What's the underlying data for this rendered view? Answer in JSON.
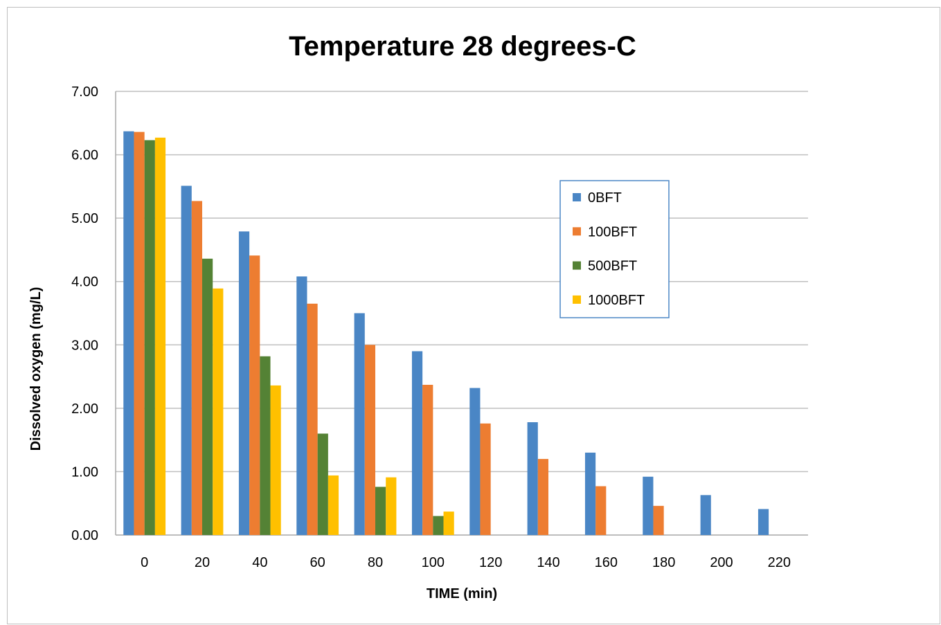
{
  "chart_data": {
    "type": "bar",
    "title": "Temperature 28 degrees-C",
    "xlabel": "TIME (min)",
    "ylabel": "Dissolved oxygen (mg/L)",
    "ylim": [
      0,
      7
    ],
    "yticks": [
      "0.00",
      "1.00",
      "2.00",
      "3.00",
      "4.00",
      "5.00",
      "6.00",
      "7.00"
    ],
    "categories": [
      "0",
      "20",
      "40",
      "60",
      "80",
      "100",
      "120",
      "140",
      "160",
      "180",
      "200",
      "220"
    ],
    "grid": true,
    "legend_position": "right",
    "series": [
      {
        "name": "0BFT",
        "color": "#4a86c5",
        "values": [
          6.37,
          5.51,
          4.79,
          4.08,
          3.5,
          2.9,
          2.32,
          1.78,
          1.3,
          0.92,
          0.63,
          0.41
        ]
      },
      {
        "name": "100BFT",
        "color": "#ed7d31",
        "values": [
          6.36,
          5.27,
          4.41,
          3.65,
          3.0,
          2.37,
          1.76,
          1.2,
          0.77,
          0.46,
          null,
          null
        ]
      },
      {
        "name": "500BFT",
        "color": "#548235",
        "values": [
          6.23,
          4.36,
          2.82,
          1.6,
          0.76,
          0.3,
          null,
          null,
          null,
          null,
          null,
          null
        ]
      },
      {
        "name": "1000BFT",
        "color": "#ffc000",
        "values": [
          6.27,
          3.89,
          2.36,
          0.94,
          0.91,
          0.37,
          null,
          null,
          null,
          null,
          null,
          null
        ]
      }
    ]
  }
}
